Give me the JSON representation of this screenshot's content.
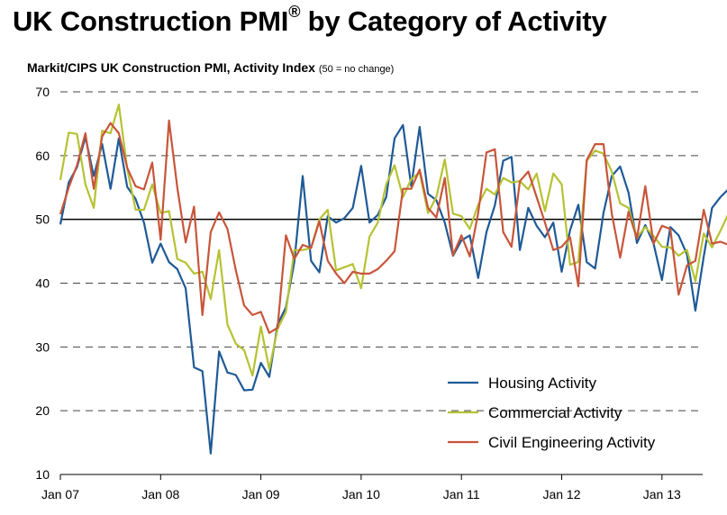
{
  "title": "UK Construction PMI",
  "title_mark": "®",
  "title_suffix": " by Category of Activity",
  "subtitle": "Markit/CIPS UK Construction PMI, Activity Index ",
  "subtitle_note": "(50 =  no change)",
  "colors": {
    "housing": "#1f5a96",
    "commercial": "#b6c233",
    "civil": "#c8553a",
    "reference_line": "#000000",
    "grid": "#444444"
  },
  "chart_data": {
    "type": "line",
    "x_tick_labels": [
      "Jan 07",
      "Jan 08",
      "Jan 09",
      "Jan 10",
      "Jan 11",
      "Jan 12",
      "Jan 13"
    ],
    "x_start": "Jan 07",
    "x_end": "Jun 13",
    "y_tick_labels": [
      "70",
      "60",
      "50",
      "40",
      "30",
      "20",
      "10"
    ],
    "ylim": [
      10,
      70
    ],
    "reference_line": 50,
    "grid": "horizontal dashed",
    "legend_position": "bottom-right",
    "series": [
      {
        "name": "Housing Activity",
        "color_key": "housing",
        "values": [
          49.2,
          55.8,
          58.2,
          62.9,
          56.8,
          61.8,
          54.8,
          62.7,
          55.1,
          53.2,
          49.5,
          43.2,
          46.2,
          43.3,
          42.2,
          39.2,
          26.8,
          26.2,
          13.3,
          29.3,
          26.0,
          25.6,
          23.2,
          23.3,
          27.5,
          25.3,
          33.5,
          36.2,
          43.3,
          56.8,
          43.5,
          41.7,
          50.5,
          49.5,
          50.2,
          51.8,
          58.4,
          49.5,
          50.7,
          53.5,
          62.7,
          64.8,
          55.2,
          64.5,
          54.0,
          53.0,
          49.5,
          44.3,
          46.7,
          47.5,
          40.8,
          48.0,
          52.2,
          59.2,
          59.8,
          45.2,
          51.8,
          49.0,
          47.2,
          49.5,
          41.8,
          48.3,
          52.3,
          43.3,
          42.3,
          51.0,
          56.8,
          58.3,
          54.2,
          46.3,
          49.1,
          46.2,
          40.5,
          48.8,
          47.5,
          44.5,
          35.7,
          44.2,
          51.8,
          53.5,
          54.8,
          58.8
        ]
      },
      {
        "name": "Commercial Activity",
        "color_key": "commercial",
        "values": [
          56.2,
          63.6,
          63.4,
          55.5,
          51.8,
          63.9,
          63.5,
          68.0,
          58.0,
          51.5,
          51.5,
          55.5,
          51.0,
          51.3,
          43.8,
          43.2,
          41.5,
          41.8,
          37.5,
          45.2,
          33.5,
          30.5,
          29.5,
          25.5,
          33.2,
          26.5,
          32.8,
          35.5,
          45.2,
          45.2,
          45.5,
          50.0,
          51.5,
          42.0,
          42.5,
          43.0,
          39.2,
          47.3,
          49.5,
          55.5,
          58.5,
          53.5,
          56.3,
          57.4,
          51.0,
          53.5,
          59.4,
          50.9,
          50.5,
          48.5,
          52.3,
          54.8,
          53.9,
          56.5,
          55.8,
          56.0,
          54.7,
          57.2,
          51.3,
          57.2,
          55.5,
          42.9,
          43.3,
          59.2,
          60.8,
          60.3,
          57.5,
          52.5,
          51.8,
          47.2,
          48.8,
          47.4,
          45.7,
          45.6,
          44.3,
          45.2,
          40.3,
          47.8,
          45.6,
          48.2,
          51.0,
          50.0
        ]
      },
      {
        "name": "Civil Engineering Activity",
        "color_key": "civil",
        "values": [
          50.8,
          55.0,
          58.5,
          63.5,
          54.8,
          63.0,
          65.1,
          63.5,
          58.1,
          55.2,
          54.7,
          58.9,
          46.8,
          65.5,
          55.0,
          46.4,
          52.0,
          35.0,
          48.0,
          51.1,
          48.5,
          42.0,
          36.5,
          35.0,
          35.5,
          32.2,
          33.0,
          47.5,
          43.8,
          46.0,
          45.5,
          49.7,
          43.5,
          41.5,
          40.0,
          41.8,
          41.5,
          41.5,
          42.2,
          43.5,
          45.0,
          54.8,
          54.8,
          57.8,
          51.8,
          50.3,
          56.5,
          44.4,
          47.5,
          44.2,
          51.0,
          60.5,
          61.0,
          48.0,
          45.7,
          56.0,
          57.5,
          53.5,
          49.5,
          45.2,
          45.7,
          47.2,
          39.5,
          59.3,
          61.8,
          61.8,
          50.9,
          44.0,
          51.2,
          47.0,
          55.2,
          46.2,
          49.0,
          48.5,
          38.2,
          42.8,
          43.5,
          51.5,
          46.2,
          46.5,
          46.0,
          46.0
        ]
      }
    ]
  }
}
